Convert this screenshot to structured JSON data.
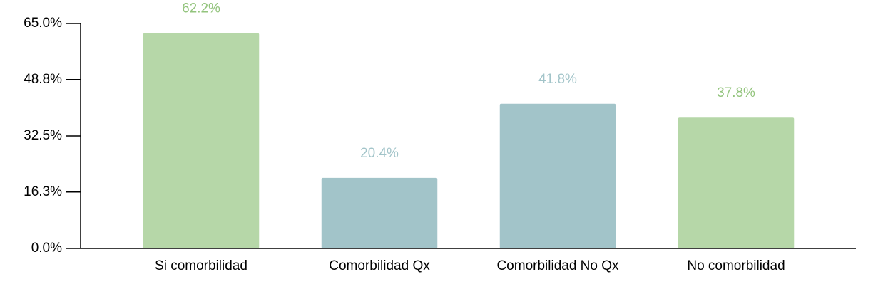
{
  "chart_data": {
    "type": "bar",
    "categories": [
      "Si comorbilidad",
      "Comorbilidad Qx",
      "Comorbilidad No Qx",
      "No comorbilidad"
    ],
    "values": [
      62.2,
      20.4,
      41.8,
      37.8
    ],
    "value_labels": [
      "62.2%",
      "20.4%",
      "41.8%",
      "37.8%"
    ],
    "colors": [
      "#b6d7a8",
      "#a2c4c9",
      "#a2c4c9",
      "#b6d7a8"
    ],
    "label_colors": [
      "#93c47d",
      "#a2c4c9",
      "#a2c4c9",
      "#93c47d"
    ],
    "ylim": [
      0,
      65
    ],
    "yticks": [
      {
        "value": 0,
        "label": "0.0%"
      },
      {
        "value": 16.3,
        "label": "16.3%"
      },
      {
        "value": 32.5,
        "label": "32.5%"
      },
      {
        "value": 48.8,
        "label": "48.8%"
      },
      {
        "value": 65,
        "label": "65.0%"
      }
    ],
    "grid": false
  }
}
